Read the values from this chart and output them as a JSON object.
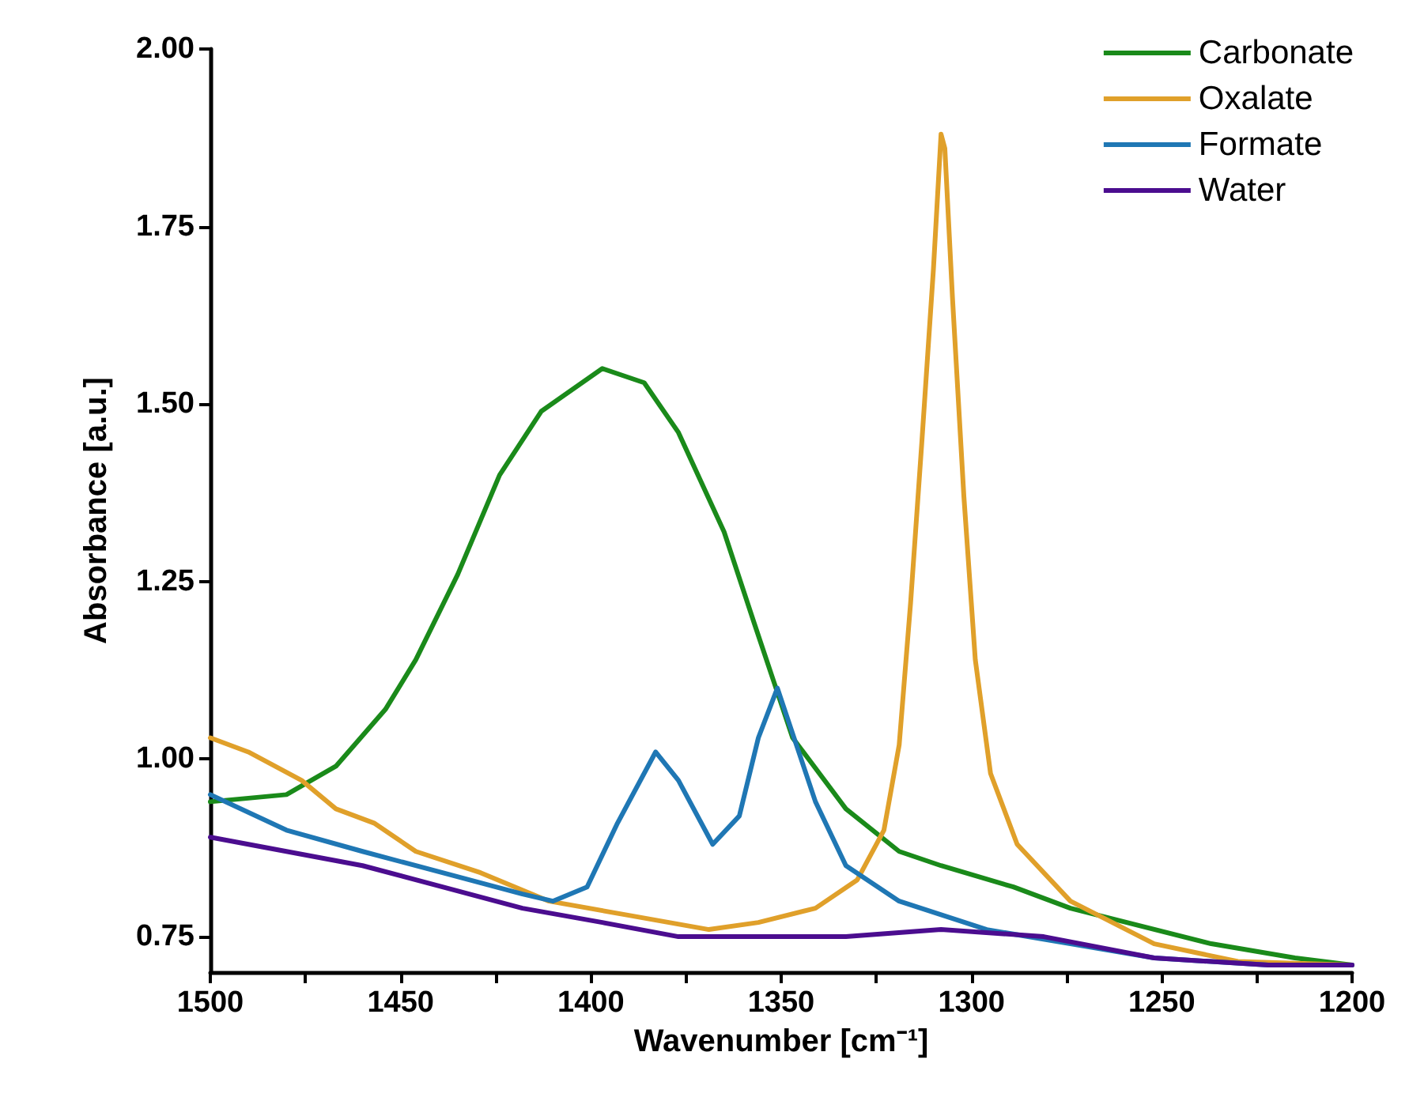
{
  "chart_data": {
    "type": "line",
    "xlabel": "Wavenumber [cm⁻¹]",
    "ylabel": "Absorbance [a.u.]",
    "xlim": [
      1500,
      1200
    ],
    "xticks": [
      1500,
      {
        "value": 1475,
        "label": null
      },
      1450,
      {
        "value": 1425,
        "label": null
      },
      1400,
      {
        "value": 1375,
        "label": null
      },
      1350,
      {
        "value": 1325,
        "label": null
      },
      1300,
      {
        "value": 1275,
        "label": null
      },
      1250,
      {
        "value": 1225,
        "label": null
      },
      1200
    ],
    "ylim": [
      0.7,
      2.0
    ],
    "yticks": [
      {
        "value": 0.75,
        "label": "0.75"
      },
      {
        "value": 1.0,
        "label": "1.00"
      },
      {
        "value": 1.25,
        "label": "1.25"
      },
      {
        "value": 1.5,
        "label": "1.50"
      },
      {
        "value": 1.75,
        "label": "1.75"
      },
      {
        "value": 2.0,
        "label": "2.00"
      }
    ],
    "grid": false,
    "legend": "top right",
    "marker": "none",
    "line_style": "solid",
    "series": [
      {
        "name": "Carbonate",
        "color": "#1a8a1a",
        "x": [
          1500,
          1480,
          1467,
          1454,
          1446,
          1435,
          1424,
          1413,
          1397,
          1386,
          1377,
          1365,
          1357,
          1352,
          1347,
          1333,
          1319,
          1308,
          1289,
          1274,
          1237,
          1215,
          1200
        ],
        "values": [
          0.94,
          0.95,
          0.99,
          1.07,
          1.14,
          1.26,
          1.4,
          1.49,
          1.55,
          1.53,
          1.46,
          1.32,
          1.19,
          1.11,
          1.03,
          0.93,
          0.87,
          0.85,
          0.82,
          0.79,
          0.74,
          0.72,
          0.71
        ]
      },
      {
        "name": "Oxalate",
        "color": "#e0a02a",
        "x": [
          1500,
          1490,
          1476,
          1467,
          1457,
          1446,
          1429,
          1411,
          1390,
          1369,
          1356,
          1341,
          1330,
          1323,
          1319,
          1316,
          1313,
          1310,
          1308,
          1307,
          1305,
          1302,
          1299,
          1295,
          1288,
          1274,
          1252,
          1230,
          1200
        ],
        "values": [
          1.03,
          1.01,
          0.97,
          0.93,
          0.91,
          0.87,
          0.84,
          0.8,
          0.78,
          0.76,
          0.77,
          0.79,
          0.83,
          0.9,
          1.02,
          1.22,
          1.45,
          1.69,
          1.88,
          1.86,
          1.65,
          1.37,
          1.14,
          0.98,
          0.88,
          0.8,
          0.74,
          0.715,
          0.71
        ]
      },
      {
        "name": "Formate",
        "color": "#1f77b4",
        "x": [
          1500,
          1480,
          1460,
          1439,
          1418,
          1410,
          1401,
          1393,
          1383,
          1377,
          1368,
          1361,
          1356,
          1351,
          1341,
          1333,
          1319,
          1296,
          1274,
          1252,
          1222,
          1200
        ],
        "values": [
          0.95,
          0.9,
          0.87,
          0.84,
          0.81,
          0.8,
          0.82,
          0.91,
          1.01,
          0.97,
          0.88,
          0.92,
          1.03,
          1.1,
          0.94,
          0.85,
          0.8,
          0.76,
          0.74,
          0.72,
          0.71,
          0.71
        ]
      },
      {
        "name": "Water",
        "color": "#4b0d8f",
        "x": [
          1500,
          1480,
          1460,
          1439,
          1418,
          1397,
          1377,
          1363,
          1356,
          1333,
          1308,
          1281,
          1252,
          1222,
          1200
        ],
        "values": [
          0.89,
          0.87,
          0.85,
          0.82,
          0.79,
          0.77,
          0.75,
          0.75,
          0.75,
          0.75,
          0.76,
          0.75,
          0.72,
          0.71,
          0.71
        ]
      }
    ]
  }
}
